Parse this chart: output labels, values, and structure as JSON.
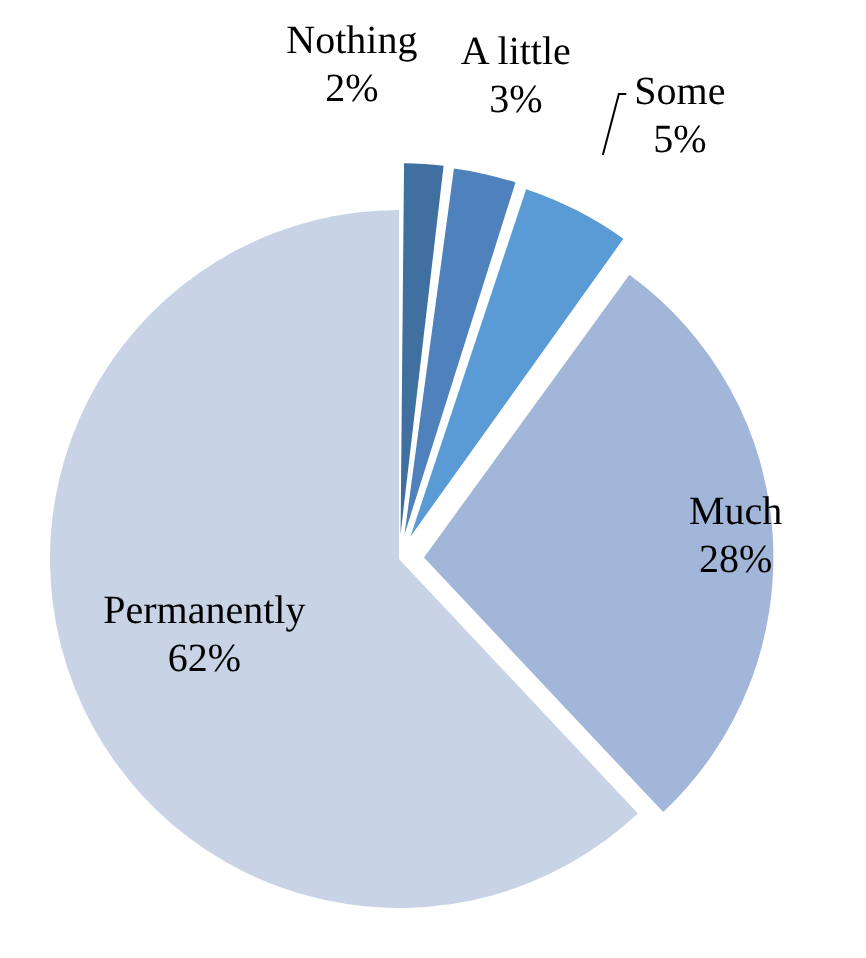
{
  "chart_data": {
    "type": "pie",
    "categories": [
      "Nothing",
      "A little",
      "Some",
      "Much",
      "Permanently"
    ],
    "values": [
      2,
      3,
      5,
      28,
      62
    ],
    "value_labels": [
      "2%",
      "3%",
      "5%",
      "28%",
      "62%"
    ],
    "colors": [
      "#40709f",
      "#4f81bd",
      "#5b9bd5",
      "#a2b6da",
      "#c8d3e6"
    ],
    "legend": false
  }
}
